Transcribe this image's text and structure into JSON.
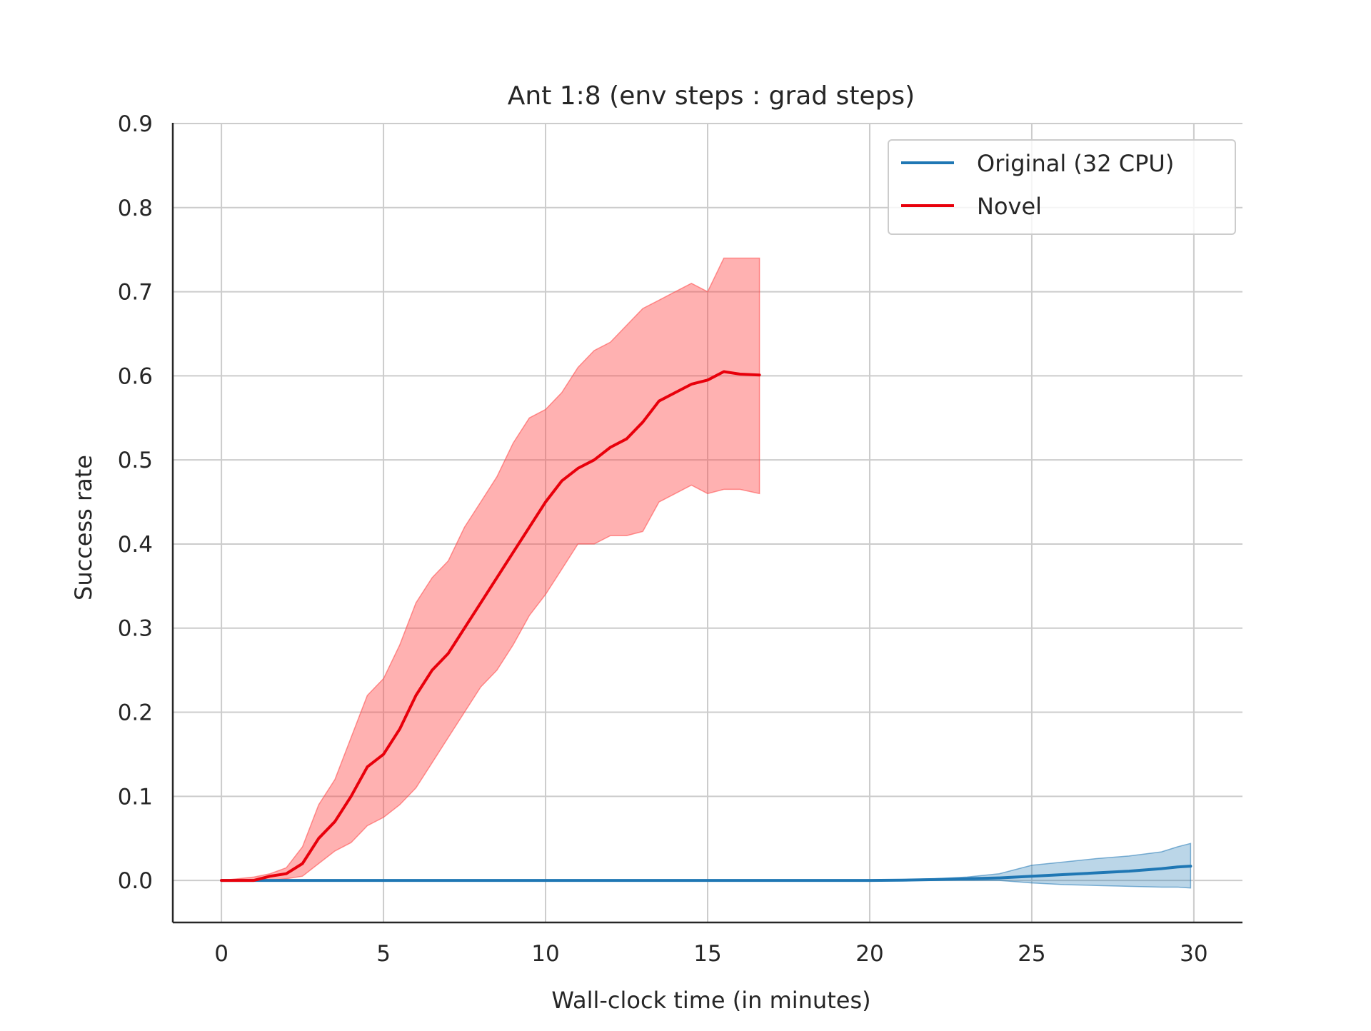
{
  "chart_data": {
    "type": "line",
    "title": "Ant 1:8 (env steps : grad steps)",
    "xlabel": "Wall-clock time (in minutes)",
    "ylabel": "Success rate",
    "xlim": [
      -1.5,
      31.5
    ],
    "ylim": [
      -0.05,
      0.9
    ],
    "xticks": [
      0,
      5,
      10,
      15,
      20,
      25,
      30
    ],
    "xtick_labels": [
      "0",
      "5",
      "10",
      "15",
      "20",
      "25",
      "30"
    ],
    "yticks": [
      0.0,
      0.1,
      0.2,
      0.3,
      0.4,
      0.5,
      0.6,
      0.7,
      0.8,
      0.9
    ],
    "ytick_labels": [
      "0.0",
      "0.1",
      "0.2",
      "0.3",
      "0.4",
      "0.5",
      "0.6",
      "0.7",
      "0.8",
      "0.9"
    ],
    "grid": true,
    "legend_position": "top-right",
    "series": [
      {
        "name": "Original (32 CPU)",
        "color": "#1f77b4",
        "band_color": "#1f77b4",
        "x": [
          0,
          5,
          10,
          15,
          20,
          21,
          22,
          23,
          24,
          25,
          26,
          27,
          28,
          29,
          29.5,
          29.9
        ],
        "y": [
          0,
          0,
          0,
          0,
          0,
          0.0003,
          0.001,
          0.002,
          0.003,
          0.005,
          0.007,
          0.009,
          0.011,
          0.014,
          0.016,
          0.017
        ],
        "lower": [
          0,
          0,
          0,
          0,
          0,
          0,
          0,
          0,
          0,
          -0.003,
          -0.005,
          -0.006,
          -0.007,
          -0.008,
          -0.008,
          -0.009
        ],
        "upper": [
          0,
          0,
          0,
          0,
          0,
          0.001,
          0.002,
          0.004,
          0.008,
          0.018,
          0.022,
          0.026,
          0.029,
          0.034,
          0.04,
          0.044
        ]
      },
      {
        "name": "Novel",
        "color": "#e8000b",
        "band_color": "#ff4545",
        "x": [
          0,
          1,
          1.5,
          2,
          2.5,
          3,
          3.5,
          4,
          4.5,
          5,
          5.5,
          6,
          6.5,
          7,
          7.5,
          8,
          8.5,
          9,
          9.5,
          10,
          10.5,
          11,
          11.5,
          12,
          12.5,
          13,
          13.5,
          14,
          14.5,
          15,
          15.5,
          16,
          16.6
        ],
        "y": [
          0,
          0,
          0.005,
          0.008,
          0.02,
          0.05,
          0.07,
          0.1,
          0.135,
          0.15,
          0.18,
          0.22,
          0.25,
          0.27,
          0.3,
          0.33,
          0.36,
          0.39,
          0.42,
          0.45,
          0.475,
          0.49,
          0.5,
          0.515,
          0.525,
          0.545,
          0.57,
          0.58,
          0.59,
          0.595,
          0.605,
          0.602,
          0.601
        ],
        "lower": [
          0,
          0,
          0,
          0.002,
          0.005,
          0.02,
          0.035,
          0.045,
          0.065,
          0.075,
          0.09,
          0.11,
          0.14,
          0.17,
          0.2,
          0.23,
          0.25,
          0.28,
          0.315,
          0.34,
          0.37,
          0.4,
          0.4,
          0.41,
          0.41,
          0.415,
          0.45,
          0.46,
          0.47,
          0.46,
          0.465,
          0.465,
          0.46
        ],
        "upper": [
          0,
          0.004,
          0.008,
          0.015,
          0.04,
          0.09,
          0.12,
          0.17,
          0.22,
          0.24,
          0.28,
          0.33,
          0.36,
          0.38,
          0.42,
          0.45,
          0.48,
          0.52,
          0.55,
          0.56,
          0.58,
          0.61,
          0.63,
          0.64,
          0.66,
          0.68,
          0.69,
          0.7,
          0.71,
          0.7,
          0.74,
          0.74,
          0.74
        ]
      }
    ]
  }
}
